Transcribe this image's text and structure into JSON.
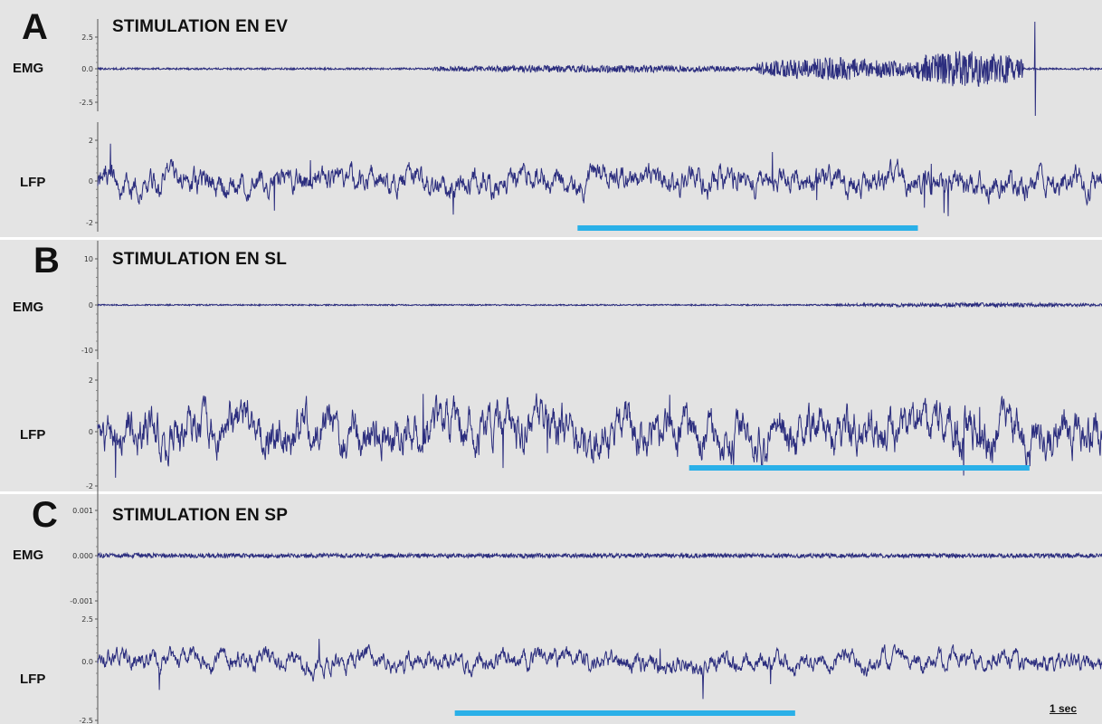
{
  "chart_data": [
    {
      "type": "line",
      "panel": "A",
      "title": "STIMULATION EN EV",
      "channels": [
        {
          "name": "EMG",
          "yticks": [
            "2.5",
            "0.0",
            "-2.5"
          ],
          "ylim": [
            -5,
            5
          ],
          "color": "#2b2d7e",
          "description_values": {
            "baseline_amplitude": 0.1,
            "bursts": [
              {
                "start_s": 3.0,
                "end_s": 5.9,
                "amplitude": 0.4
              },
              {
                "start_s": 5.9,
                "end_s": 7.3,
                "amplitude": 1.2
              },
              {
                "start_s": 7.3,
                "end_s": 8.3,
                "amplitude": 2.0
              }
            ],
            "spike": {
              "t_s": 8.4,
              "peak": 5.0,
              "trough": -5.0
            }
          }
        },
        {
          "name": "LFP",
          "yticks": [
            "2",
            "0",
            "-2"
          ],
          "ylim": [
            -2.5,
            2.5
          ],
          "color": "#2b2d7e",
          "description_values": {
            "baseline_amplitude": 0.6,
            "active_amplitude": 0.9
          }
        }
      ],
      "stimulation_bar": {
        "start_s": 4.3,
        "end_s": 7.35,
        "color": "#2ab0e8"
      }
    },
    {
      "type": "line",
      "panel": "B",
      "title": "STIMULATION EN SL",
      "channels": [
        {
          "name": "EMG",
          "yticks": [
            "10",
            "0",
            "-10"
          ],
          "ylim": [
            -15,
            15
          ],
          "color": "#2b2d7e",
          "description_values": {
            "baseline_amplitude": 0.3,
            "bursts": [
              {
                "start_s": 6.6,
                "end_s": 9.0,
                "amplitude": 1.0
              },
              {
                "start_s": 9.0,
                "end_s": 9.05,
                "amplitude": 1.5
              }
            ]
          }
        },
        {
          "name": "LFP",
          "yticks": [
            "2",
            "0",
            "-2"
          ],
          "ylim": [
            -2.2,
            2.2
          ],
          "color": "#2b2d7e",
          "description_values": {
            "baseline_amplitude": 0.8,
            "active_amplitude": 0.9
          }
        }
      ],
      "stimulation_bar": {
        "start_s": 5.3,
        "end_s": 8.35,
        "color": "#2ab0e8"
      }
    },
    {
      "type": "line",
      "panel": "C",
      "title": "STIMULATION EN SP",
      "channels": [
        {
          "name": "EMG",
          "yticks": [
            "0.001",
            "0.000",
            "-0.001"
          ],
          "ylim": [
            -0.0015,
            0.0015
          ],
          "color": "#2b2d7e",
          "description_values": {
            "baseline_amplitude": 5e-05
          }
        },
        {
          "name": "LFP",
          "yticks": [
            "2.5",
            "0.0",
            "-2.5"
          ],
          "ylim": [
            -2.6,
            2.6
          ],
          "color": "#2b2d7e",
          "description_values": {
            "baseline_amplitude": 0.5,
            "active_amplitude": 0.6
          }
        }
      ],
      "stimulation_bar": {
        "start_s": 3.2,
        "end_s": 6.25,
        "color": "#2ab0e8"
      }
    }
  ],
  "time_axis": {
    "duration_s": 9.0
  },
  "scale_bar": {
    "label": "1 sec",
    "duration_s": 1
  }
}
